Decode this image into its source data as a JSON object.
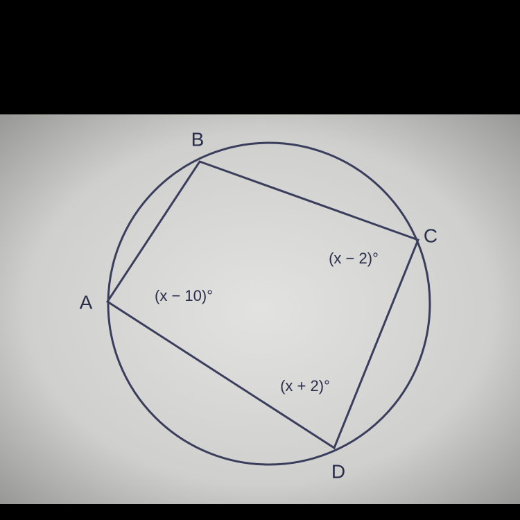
{
  "points": [
    {
      "label": "A"
    },
    {
      "label": "B"
    },
    {
      "label": "C"
    },
    {
      "label": "D"
    }
  ],
  "angles": [
    {
      "label": "(x − 10)°"
    },
    {
      "label": "(x − 2)°"
    },
    {
      "label": "(x + 2)°"
    }
  ]
}
